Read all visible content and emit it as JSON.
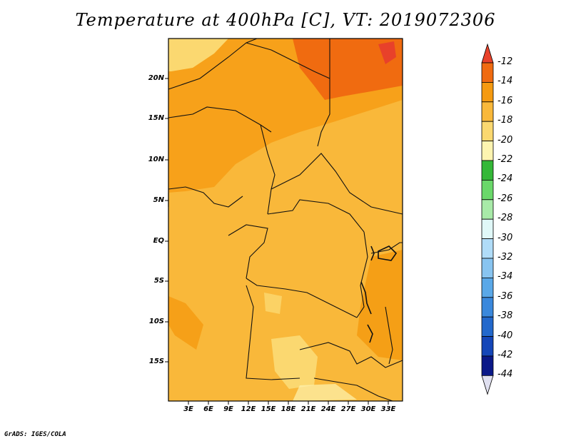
{
  "title": "Temperature at 400hPa [C], VT: 2019072306",
  "footer": "GrADS: IGES/COLA",
  "map": {
    "lat_labels": [
      "20N",
      "15N",
      "10N",
      "5N",
      "EQ",
      "5S",
      "10S",
      "15S"
    ],
    "lon_labels": [
      "3E",
      "6E",
      "9E",
      "12E",
      "15E",
      "18E",
      "21E",
      "24E",
      "27E",
      "30E",
      "33E"
    ]
  },
  "colorbar": {
    "labels": [
      "-12",
      "-14",
      "-16",
      "-18",
      "-20",
      "-22",
      "-24",
      "-26",
      "-28",
      "-30",
      "-32",
      "-34",
      "-36",
      "-38",
      "-40",
      "-42",
      "-44"
    ],
    "colors": [
      "#e8412a",
      "#f06b10",
      "#f59a10",
      "#f9b83a",
      "#fbd870",
      "#fdf4b0",
      "#34b838",
      "#6ad86a",
      "#a8eaa8",
      "#e0f8f8",
      "#b0dcf8",
      "#88c4f0",
      "#5aa8e8",
      "#3a88dc",
      "#2268cc",
      "#1446b8",
      "#0a1888",
      "#e0e0f0"
    ]
  }
}
